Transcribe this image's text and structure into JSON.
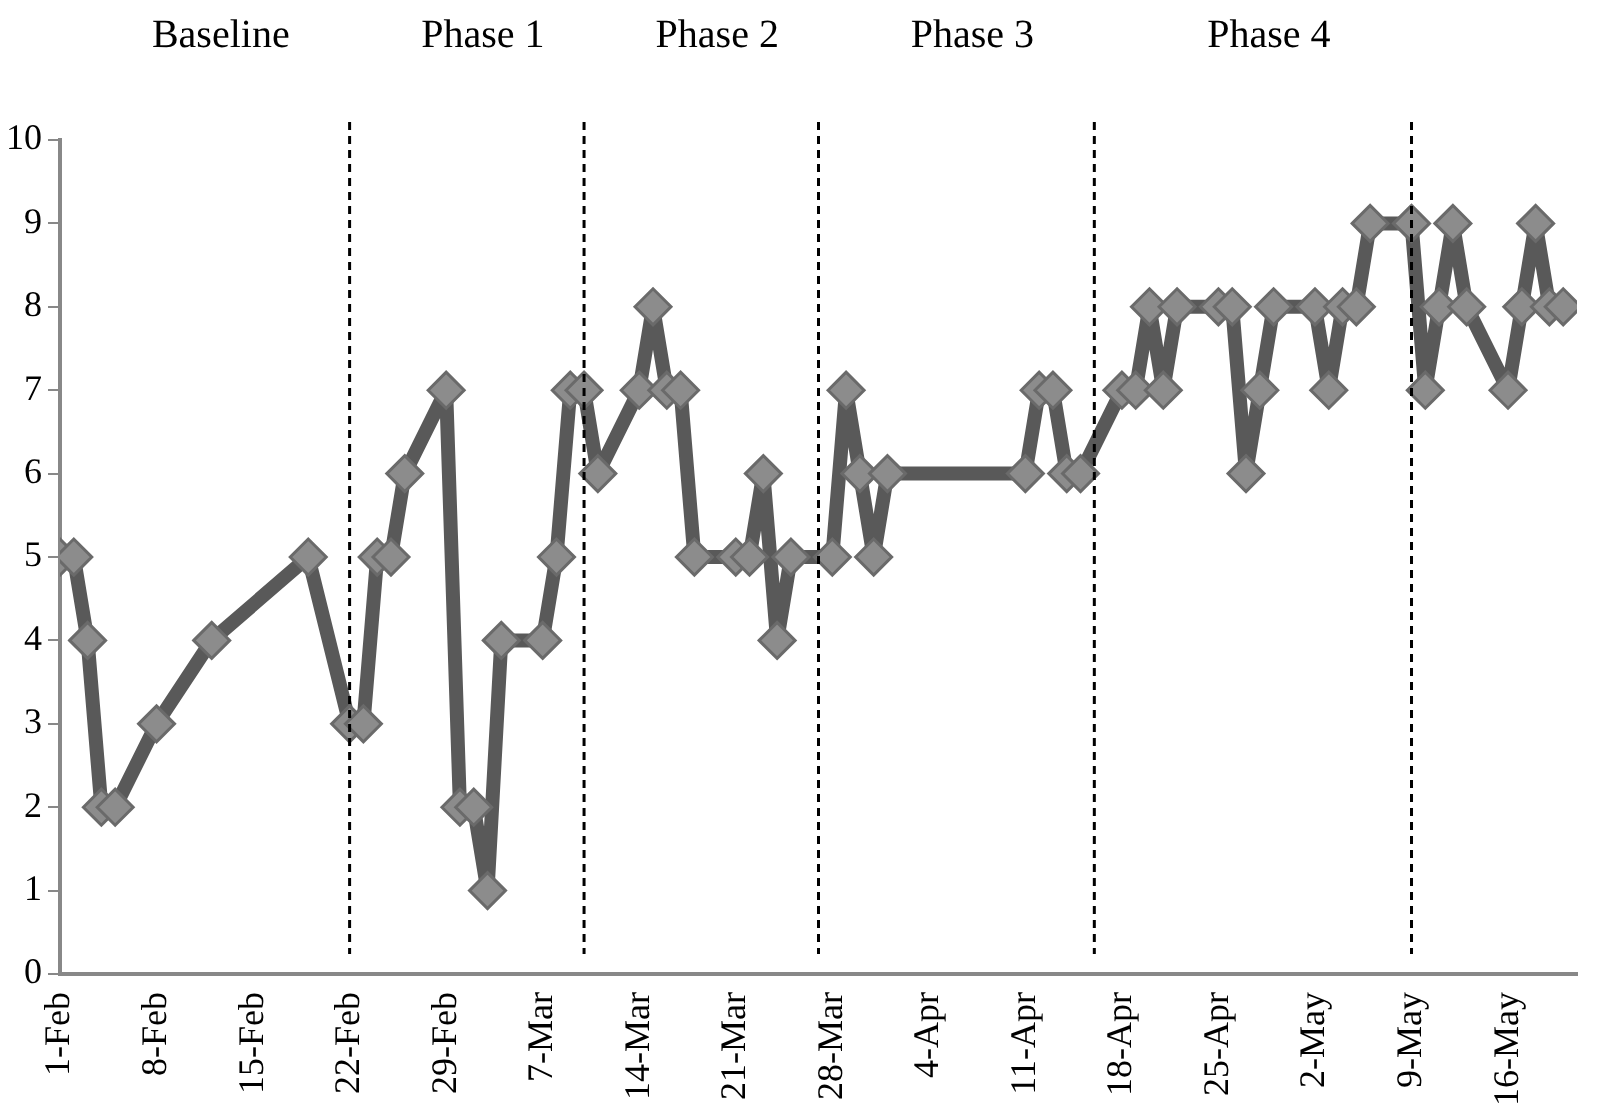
{
  "chart_data": {
    "type": "line",
    "x": [
      "--02-01",
      "--02-02",
      "--02-03",
      "--02-04",
      "--02-05",
      "--02-08",
      "--02-12",
      "--02-19",
      "--02-22",
      "--02-23",
      "--02-24",
      "--02-25",
      "--02-26",
      "--02-29",
      "--03-01",
      "--03-02",
      "--03-03",
      "--03-04",
      "--03-07",
      "--03-08",
      "--03-09",
      "--03-10",
      "--03-11",
      "--03-14",
      "--03-15",
      "--03-16",
      "--03-17",
      "--03-18",
      "--03-21",
      "--03-22",
      "--03-23",
      "--03-24",
      "--03-25",
      "--03-28",
      "--03-29",
      "--03-30",
      "--03-31",
      "--04-01",
      "--04-11",
      "--04-12",
      "--04-13",
      "--04-14",
      "--04-15",
      "--04-18",
      "--04-19",
      "--04-20",
      "--04-21",
      "--04-22",
      "--04-25",
      "--04-26",
      "--04-27",
      "--04-28",
      "--04-29",
      "--05-02",
      "--05-03",
      "--05-04",
      "--05-05",
      "--05-06",
      "--05-09",
      "--05-10",
      "--05-11",
      "--05-12",
      "--05-13",
      "--05-16",
      "--05-17",
      "--05-18",
      "--05-19",
      "--05-20"
    ],
    "series": [
      {
        "color": "#595959",
        "values": [
          5,
          5,
          4,
          2,
          2,
          3,
          4,
          5,
          3,
          3,
          5,
          5,
          6,
          7,
          2,
          2,
          1,
          4,
          4,
          5,
          7,
          7,
          6,
          7,
          8,
          7,
          7,
          5,
          5,
          5,
          6,
          4,
          5,
          5,
          7,
          6,
          5,
          6,
          6,
          7,
          7,
          6,
          6,
          7,
          7,
          8,
          7,
          8,
          8,
          8,
          6,
          7,
          8,
          8,
          7,
          8,
          8,
          9,
          9,
          7,
          8,
          9,
          8,
          7,
          8,
          9,
          8,
          8
        ]
      }
    ],
    "marker": "diamond",
    "line_style": "solid",
    "grid": false,
    "legend": false,
    "xlim": [
      "--02-01",
      "--05-21"
    ],
    "xticks": [
      {
        "value": "--02-01",
        "label": "1-Feb"
      },
      {
        "value": "--02-08",
        "label": "8-Feb"
      },
      {
        "value": "--02-15",
        "label": "15-Feb"
      },
      {
        "value": "--02-22",
        "label": "22-Feb"
      },
      {
        "value": "--02-29",
        "label": "29-Feb"
      },
      {
        "value": "--03-07",
        "label": "7-Mar"
      },
      {
        "value": "--03-14",
        "label": "14-Mar"
      },
      {
        "value": "--03-21",
        "label": "21-Mar"
      },
      {
        "value": "--03-28",
        "label": "28-Mar"
      },
      {
        "value": "--04-04",
        "label": "4-Apr"
      },
      {
        "value": "--04-11",
        "label": "11-Apr"
      },
      {
        "value": "--04-18",
        "label": "18-Apr"
      },
      {
        "value": "--04-25",
        "label": "25-Apr"
      },
      {
        "value": "--05-02",
        "label": "2-May"
      },
      {
        "value": "--05-09",
        "label": "9-May"
      },
      {
        "value": "--05-16",
        "label": "16-May"
      }
    ],
    "ylim": [
      0,
      10
    ],
    "yticks": [
      0,
      1,
      2,
      3,
      4,
      5,
      6,
      7,
      8,
      9,
      10
    ],
    "ref_lines": [
      {
        "axis": "x",
        "value": "--02-22",
        "color": "#000000",
        "line_style": "dashed"
      },
      {
        "axis": "x",
        "value": "--03-10",
        "color": "#000000",
        "line_style": "dashed"
      },
      {
        "axis": "x",
        "value": "--03-27",
        "color": "#000000",
        "line_style": "dashed"
      },
      {
        "axis": "x",
        "value": "--04-16",
        "color": "#000000",
        "line_style": "dashed"
      },
      {
        "axis": "x",
        "value": "--05-09",
        "color": "#000000",
        "line_style": "dashed"
      }
    ],
    "annotations": [
      "Baseline",
      "Phase 1",
      "Phase 2",
      "Phase 3",
      "Phase 4"
    ]
  }
}
